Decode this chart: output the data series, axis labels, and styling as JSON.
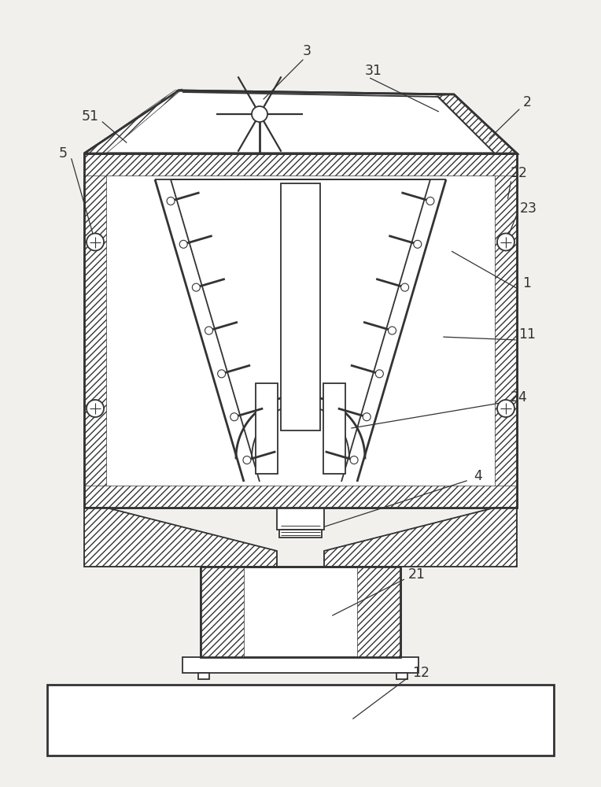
{
  "bg_color": "#f2f0ed",
  "line_color": "#333333",
  "figsize": [
    7.64,
    10.0
  ],
  "dpi": 100,
  "lw": 1.3,
  "lw2": 2.0
}
